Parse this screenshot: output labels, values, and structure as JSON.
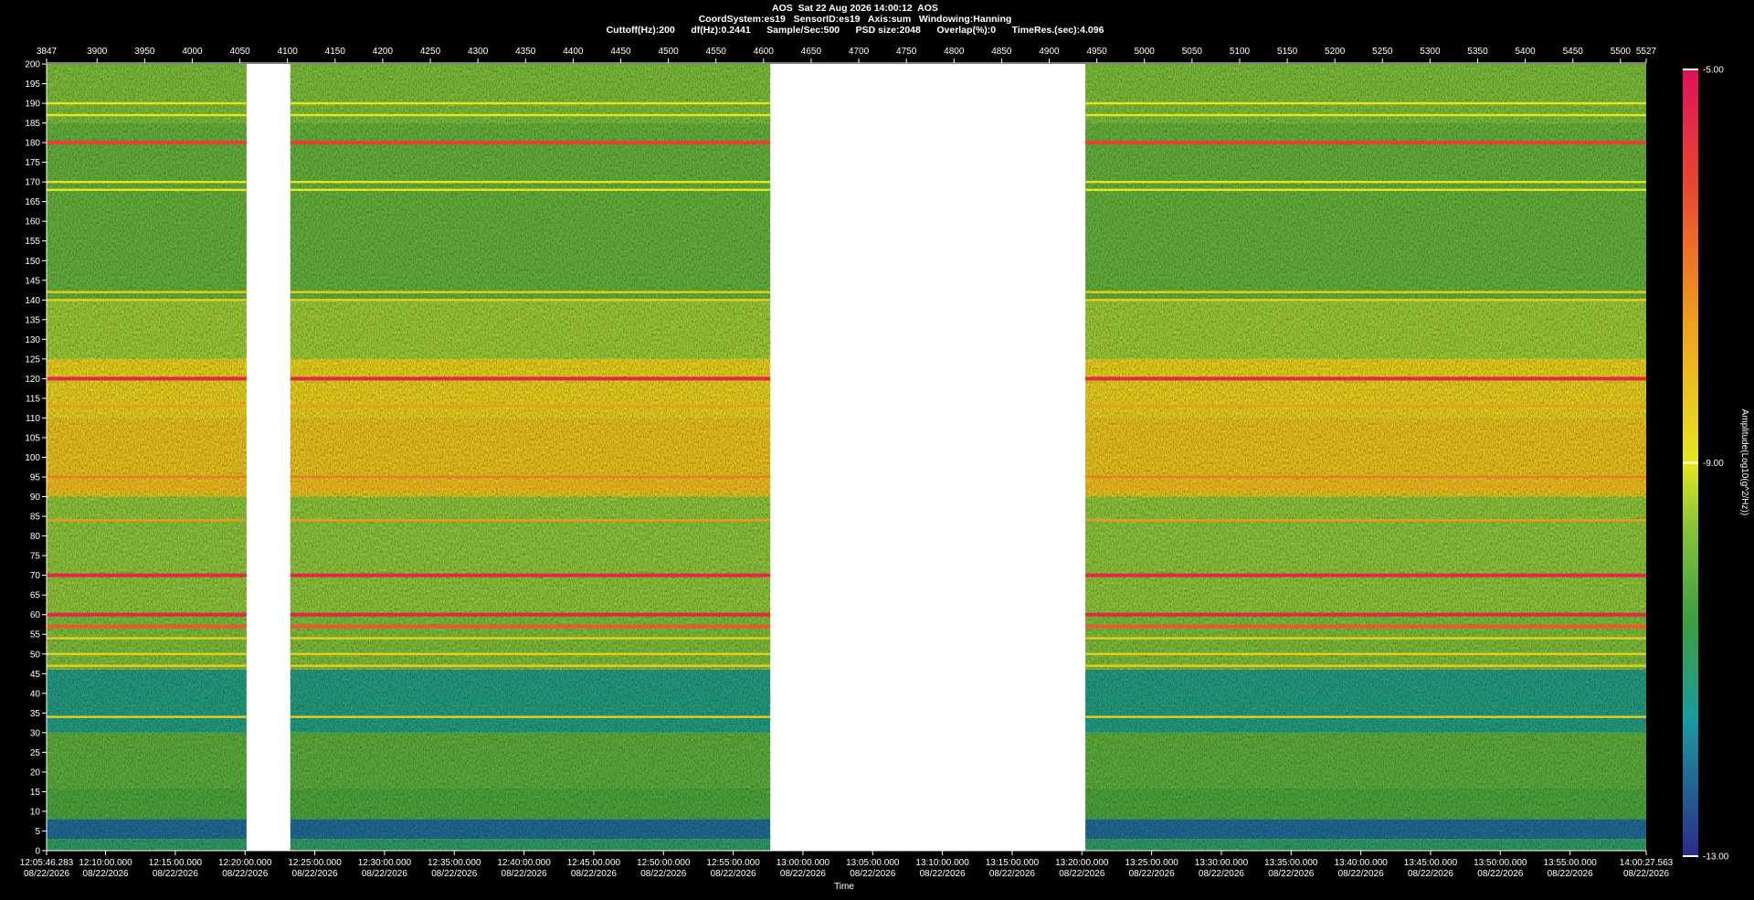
{
  "chart_data": {
    "type": "spectrogram",
    "title_lines": [
      "AOS  Sat 22 Aug 2026 14:00:12  AOS",
      "CoordSystem:es19   SensorID:es19   Axis:sum   Windowing:Hanning",
      "Cuttoff(Hz):200      df(Hz):0.2441      Sample/Sec:500      PSD size:2048      Overlap(%):0      TimeRes.(sec):4.096"
    ],
    "xlabel": "Time",
    "colorbar_label": "Amplitude(Log10(g^2/Hz))",
    "xlim": [
      3847,
      5527
    ],
    "xticks": [
      3847,
      3900,
      3950,
      4000,
      4050,
      4100,
      4150,
      4200,
      4250,
      4300,
      4350,
      4400,
      4450,
      4500,
      4550,
      4600,
      4650,
      4700,
      4750,
      4800,
      4850,
      4900,
      4950,
      5000,
      5050,
      5100,
      5150,
      5200,
      5250,
      5300,
      5350,
      5400,
      5450,
      5500,
      5527
    ],
    "time_lim": [
      0,
      6881.28
    ],
    "time_ticks": [
      {
        "value": 0,
        "label": "12:05:46.283",
        "date": "08/22/2026"
      },
      {
        "value": 253.717,
        "label": "12:10:00.000",
        "date": "08/22/2026"
      },
      {
        "value": 553.717,
        "label": "12:15:00.000",
        "date": "08/22/2026"
      },
      {
        "value": 853.717,
        "label": "12:20:00.000",
        "date": "08/22/2026"
      },
      {
        "value": 1153.717,
        "label": "12:25:00.000",
        "date": "08/22/2026"
      },
      {
        "value": 1453.717,
        "label": "12:30:00.000",
        "date": "08/22/2026"
      },
      {
        "value": 1753.717,
        "label": "12:35:00.000",
        "date": "08/22/2026"
      },
      {
        "value": 2053.717,
        "label": "12:40:00.000",
        "date": "08/22/2026"
      },
      {
        "value": 2353.717,
        "label": "12:45:00.000",
        "date": "08/22/2026"
      },
      {
        "value": 2653.717,
        "label": "12:50:00.000",
        "date": "08/22/2026"
      },
      {
        "value": 2953.717,
        "label": "12:55:00.000",
        "date": "08/22/2026"
      },
      {
        "value": 3253.717,
        "label": "13:00:00.000",
        "date": "08/22/2026"
      },
      {
        "value": 3553.717,
        "label": "13:05:00.000",
        "date": "08/22/2026"
      },
      {
        "value": 3853.717,
        "label": "13:10:00.000",
        "date": "08/22/2026"
      },
      {
        "value": 4153.717,
        "label": "13:15:00.000",
        "date": "08/22/2026"
      },
      {
        "value": 4453.717,
        "label": "13:20:00.000",
        "date": "08/22/2026"
      },
      {
        "value": 4753.717,
        "label": "13:25:00.000",
        "date": "08/22/2026"
      },
      {
        "value": 5053.717,
        "label": "13:30:00.000",
        "date": "08/22/2026"
      },
      {
        "value": 5353.717,
        "label": "13:35:00.000",
        "date": "08/22/2026"
      },
      {
        "value": 5653.717,
        "label": "13:40:00.000",
        "date": "08/22/2026"
      },
      {
        "value": 5953.717,
        "label": "13:45:00.000",
        "date": "08/22/2026"
      },
      {
        "value": 6253.717,
        "label": "13:50:00.000",
        "date": "08/22/2026"
      },
      {
        "value": 6553.717,
        "label": "13:55:00.000",
        "date": "08/22/2026"
      },
      {
        "value": 6881.28,
        "label": "14:00:27.563",
        "date": "08/22/2026"
      }
    ],
    "ylim": [
      0,
      200
    ],
    "yticks": [
      0,
      5,
      10,
      15,
      20,
      25,
      30,
      35,
      40,
      45,
      50,
      55,
      60,
      65,
      70,
      75,
      80,
      85,
      90,
      95,
      100,
      105,
      110,
      115,
      120,
      125,
      130,
      135,
      140,
      145,
      150,
      155,
      160,
      165,
      170,
      175,
      180,
      185,
      190,
      195,
      200
    ],
    "segments": [
      [
        3847,
        4057
      ],
      [
        4103,
        4607
      ],
      [
        4938,
        5527
      ]
    ],
    "band_edges": [
      0,
      3,
      8,
      16,
      30,
      46,
      60,
      90,
      110,
      125,
      140,
      185,
      200
    ],
    "band_values": [
      -11,
      -12.2,
      -10.4,
      -10.2,
      -11.3,
      -9.8,
      -9.6,
      -8.3,
      -8.6,
      -9.5,
      -10.1,
      -9.8
    ],
    "tone_freqs": [
      180,
      120,
      113,
      95,
      93,
      84,
      70,
      60,
      57,
      54,
      50,
      47,
      34,
      190,
      187,
      170,
      168,
      142,
      140
    ],
    "tone_values": [
      -6,
      -5.5,
      -7.5,
      -7,
      -7.5,
      -7.5,
      -5.5,
      -5.5,
      -6.5,
      -8.5,
      -8.5,
      -8.5,
      -8.5,
      -9,
      -9,
      -9,
      -9,
      -8.5,
      -8.5
    ],
    "clim": [
      -13,
      -5
    ],
    "cticks": [
      {
        "value": -5,
        "label": "-5.00"
      },
      {
        "value": -9,
        "label": "-9.00"
      },
      {
        "value": -13,
        "label": "-13.00"
      }
    ],
    "colormap": [
      {
        "value": -13,
        "color": "#2b2a8a"
      },
      {
        "value": -11.6,
        "color": "#1a9c9e"
      },
      {
        "value": -10.6,
        "color": "#3c9e3e"
      },
      {
        "value": -9.6,
        "color": "#8ec63a"
      },
      {
        "value": -9,
        "color": "#e6e61e"
      },
      {
        "value": -7.6,
        "color": "#f0a01e"
      },
      {
        "value": -6.2,
        "color": "#e8482e"
      },
      {
        "value": -5,
        "color": "#e0105a"
      }
    ]
  }
}
